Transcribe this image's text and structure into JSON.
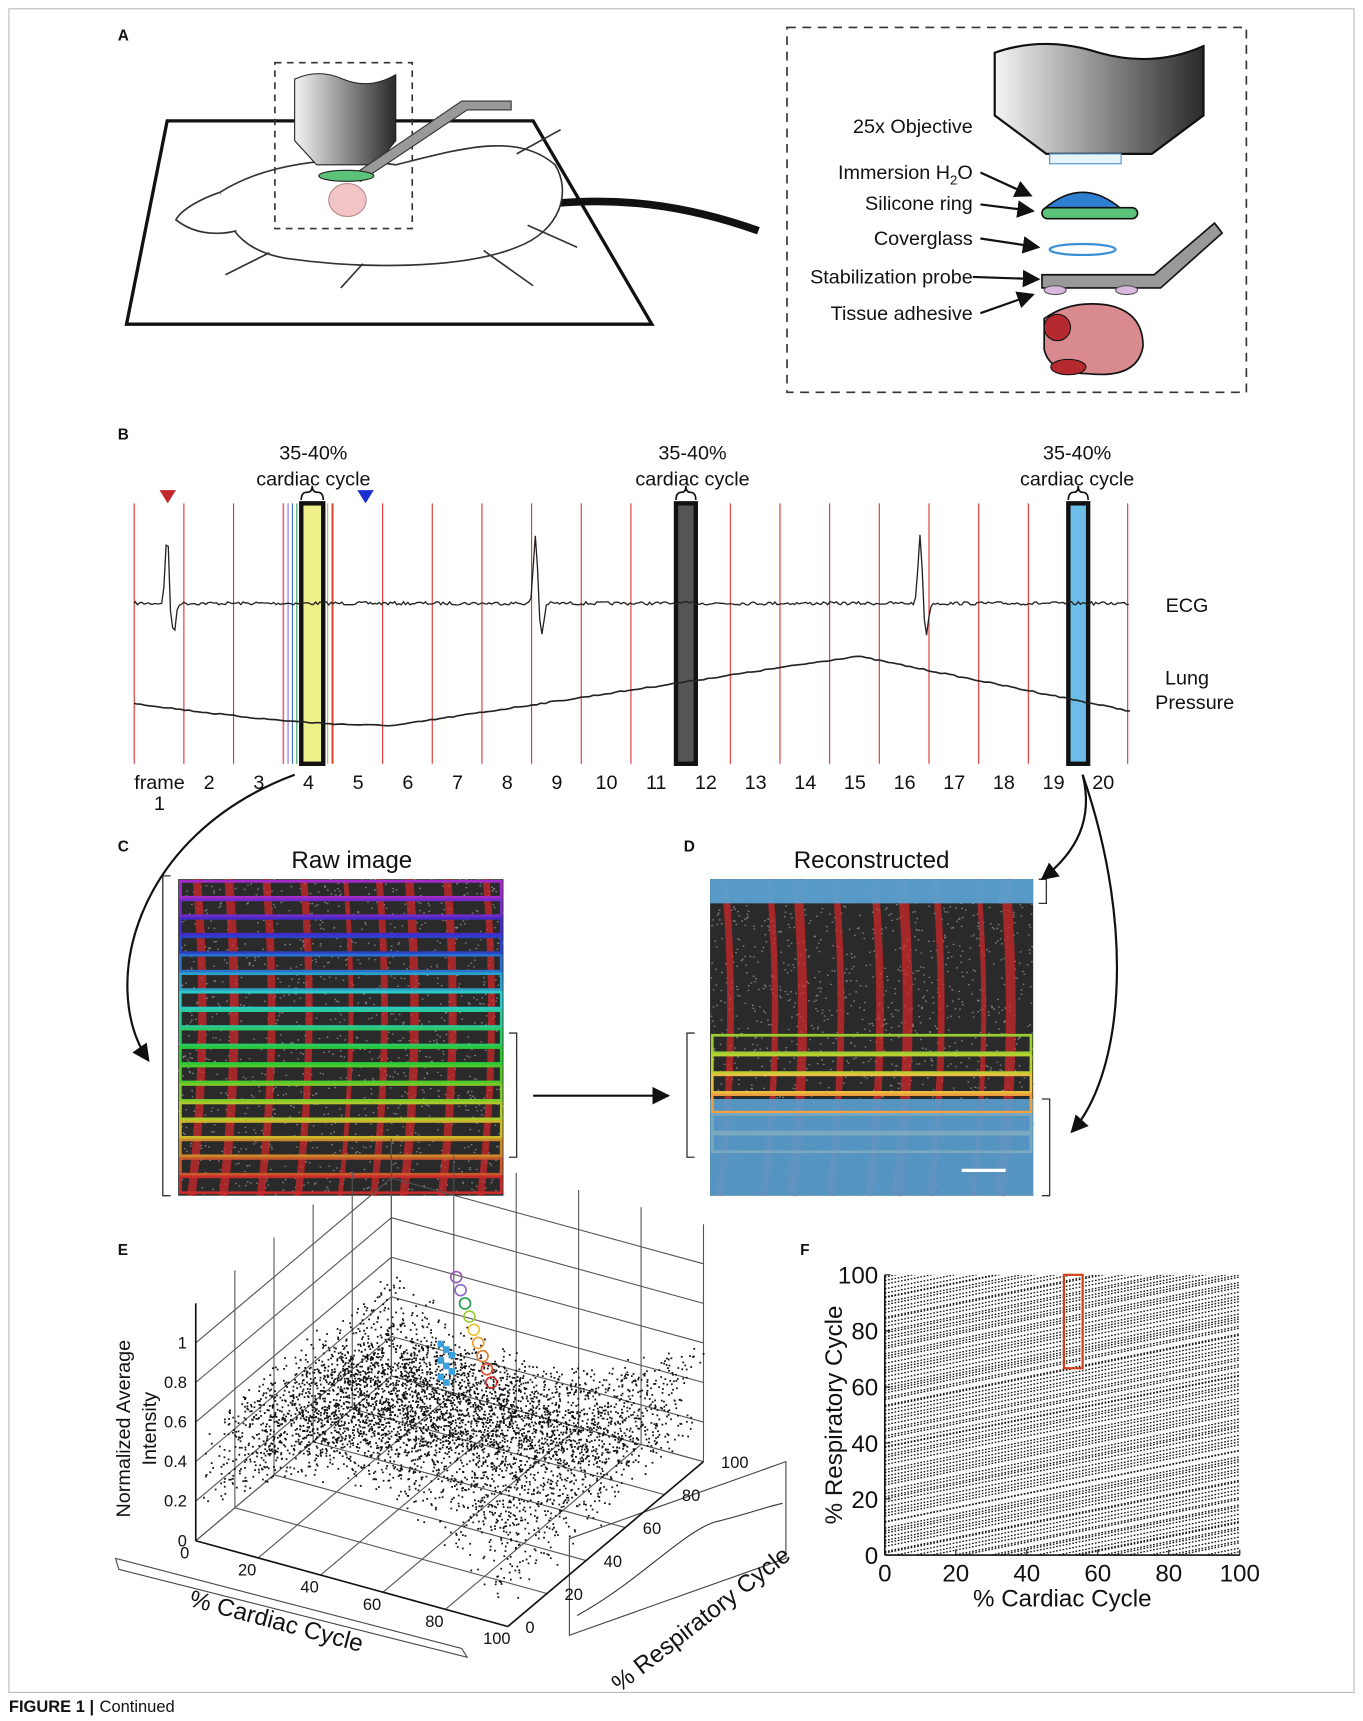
{
  "figure": {
    "A": {
      "label": "A",
      "objective": "25x Objective",
      "immersion": [
        "Immersion H",
        "2",
        "O"
      ],
      "silicone": "Silicone ring",
      "coverglass": "Coverglass",
      "probe": "Stabilization probe",
      "adhesive": "Tissue adhesive"
    },
    "B": {
      "label": "B",
      "windows": [
        [
          "35-40%",
          "cardiac cycle"
        ],
        [
          "35-40%",
          "cardiac cycle"
        ],
        [
          "35-40%",
          "cardiac cycle"
        ]
      ],
      "ecg": "ECG",
      "lung": [
        "Lung",
        "Pressure"
      ],
      "frame_word": "frame",
      "frames": [
        1,
        2,
        3,
        4,
        5,
        6,
        7,
        8,
        9,
        10,
        11,
        12,
        13,
        14,
        15,
        16,
        17,
        18,
        19,
        20
      ]
    },
    "C": {
      "label": "C",
      "title": "Raw image"
    },
    "D": {
      "label": "D",
      "title": "Reconstructed"
    },
    "E": {
      "label": "E",
      "zlabel": [
        "Normalized Average",
        "Intensity"
      ],
      "zticks": [
        0,
        0.2,
        0.4,
        0.6,
        0.8,
        1
      ],
      "xticks": [
        0,
        20,
        40,
        60,
        80,
        100
      ],
      "yticks": [
        0,
        20,
        40,
        60,
        80,
        100
      ],
      "xlabel": "% Cardiac Cycle",
      "ylabel": "% Respiratory Cycle"
    },
    "F": {
      "label": "F",
      "xlim": [
        0,
        100
      ],
      "ylim": [
        0,
        100
      ],
      "xticks": [
        0,
        20,
        40,
        60,
        80,
        100
      ],
      "yticks": [
        0,
        20,
        40,
        60,
        80,
        100
      ],
      "xlabel": "% Cardiac Cycle",
      "ylabel": "% Respiratory Cycle"
    }
  },
  "caption": {
    "bold": "FIGURE 1 |",
    "text": "Continued"
  }
}
